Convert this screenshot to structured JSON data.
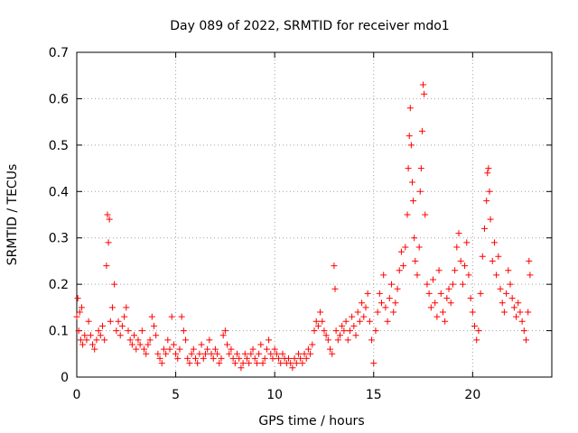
{
  "chart_data": {
    "type": "scatter",
    "title": "Day 089 of 2022, SRMTID for receiver mdo1",
    "xlabel": "GPS time / hours",
    "ylabel": "SRMTID / TECUs",
    "xlim": [
      0,
      24
    ],
    "ylim": [
      0,
      0.7
    ],
    "xticks": [
      "0",
      "5",
      "10",
      "15",
      "20"
    ],
    "yticks": [
      "0",
      "0.1",
      "0.2",
      "0.3",
      "0.4",
      "0.5",
      "0.6",
      "0.7"
    ],
    "grid": true,
    "marker": "+",
    "color": "#ff0000",
    "series": [
      {
        "name": "SRMTID",
        "points": [
          [
            0.0,
            0.13
          ],
          [
            0.05,
            0.17
          ],
          [
            0.1,
            0.1
          ],
          [
            0.15,
            0.14
          ],
          [
            0.2,
            0.08
          ],
          [
            0.25,
            0.15
          ],
          [
            0.3,
            0.07
          ],
          [
            0.4,
            0.09
          ],
          [
            0.5,
            0.08
          ],
          [
            0.6,
            0.12
          ],
          [
            0.7,
            0.09
          ],
          [
            0.8,
            0.07
          ],
          [
            0.9,
            0.06
          ],
          [
            1.0,
            0.08
          ],
          [
            1.1,
            0.1
          ],
          [
            1.2,
            0.09
          ],
          [
            1.3,
            0.11
          ],
          [
            1.4,
            0.08
          ],
          [
            1.5,
            0.24
          ],
          [
            1.55,
            0.35
          ],
          [
            1.6,
            0.29
          ],
          [
            1.65,
            0.34
          ],
          [
            1.7,
            0.12
          ],
          [
            1.8,
            0.15
          ],
          [
            1.9,
            0.2
          ],
          [
            2.0,
            0.1
          ],
          [
            2.1,
            0.12
          ],
          [
            2.2,
            0.09
          ],
          [
            2.3,
            0.11
          ],
          [
            2.4,
            0.13
          ],
          [
            2.5,
            0.15
          ],
          [
            2.6,
            0.1
          ],
          [
            2.7,
            0.08
          ],
          [
            2.8,
            0.07
          ],
          [
            2.9,
            0.09
          ],
          [
            3.0,
            0.06
          ],
          [
            3.1,
            0.08
          ],
          [
            3.2,
            0.07
          ],
          [
            3.3,
            0.1
          ],
          [
            3.4,
            0.06
          ],
          [
            3.5,
            0.05
          ],
          [
            3.6,
            0.07
          ],
          [
            3.7,
            0.08
          ],
          [
            3.8,
            0.13
          ],
          [
            3.9,
            0.11
          ],
          [
            4.0,
            0.09
          ],
          [
            4.1,
            0.05
          ],
          [
            4.2,
            0.04
          ],
          [
            4.3,
            0.03
          ],
          [
            4.4,
            0.06
          ],
          [
            4.5,
            0.05
          ],
          [
            4.6,
            0.08
          ],
          [
            4.7,
            0.06
          ],
          [
            4.8,
            0.13
          ],
          [
            4.9,
            0.07
          ],
          [
            5.0,
            0.05
          ],
          [
            5.1,
            0.04
          ],
          [
            5.2,
            0.06
          ],
          [
            5.3,
            0.13
          ],
          [
            5.4,
            0.1
          ],
          [
            5.5,
            0.08
          ],
          [
            5.6,
            0.04
          ],
          [
            5.7,
            0.03
          ],
          [
            5.8,
            0.05
          ],
          [
            5.9,
            0.06
          ],
          [
            6.0,
            0.04
          ],
          [
            6.1,
            0.03
          ],
          [
            6.2,
            0.05
          ],
          [
            6.3,
            0.07
          ],
          [
            6.4,
            0.04
          ],
          [
            6.5,
            0.05
          ],
          [
            6.6,
            0.06
          ],
          [
            6.7,
            0.08
          ],
          [
            6.8,
            0.05
          ],
          [
            6.9,
            0.04
          ],
          [
            7.0,
            0.06
          ],
          [
            7.1,
            0.05
          ],
          [
            7.2,
            0.03
          ],
          [
            7.3,
            0.04
          ],
          [
            7.4,
            0.09
          ],
          [
            7.5,
            0.1
          ],
          [
            7.6,
            0.07
          ],
          [
            7.7,
            0.05
          ],
          [
            7.8,
            0.06
          ],
          [
            7.9,
            0.04
          ],
          [
            8.0,
            0.03
          ],
          [
            8.1,
            0.05
          ],
          [
            8.2,
            0.04
          ],
          [
            8.3,
            0.02
          ],
          [
            8.4,
            0.03
          ],
          [
            8.5,
            0.05
          ],
          [
            8.6,
            0.04
          ],
          [
            8.7,
            0.03
          ],
          [
            8.8,
            0.05
          ],
          [
            8.9,
            0.06
          ],
          [
            9.0,
            0.04
          ],
          [
            9.1,
            0.03
          ],
          [
            9.2,
            0.05
          ],
          [
            9.3,
            0.07
          ],
          [
            9.4,
            0.03
          ],
          [
            9.5,
            0.04
          ],
          [
            9.6,
            0.06
          ],
          [
            9.7,
            0.08
          ],
          [
            9.8,
            0.05
          ],
          [
            9.9,
            0.04
          ],
          [
            10.0,
            0.06
          ],
          [
            10.1,
            0.05
          ],
          [
            10.2,
            0.04
          ],
          [
            10.3,
            0.03
          ],
          [
            10.4,
            0.05
          ],
          [
            10.5,
            0.04
          ],
          [
            10.6,
            0.03
          ],
          [
            10.7,
            0.04
          ],
          [
            10.8,
            0.03
          ],
          [
            10.9,
            0.02
          ],
          [
            11.0,
            0.04
          ],
          [
            11.1,
            0.03
          ],
          [
            11.2,
            0.05
          ],
          [
            11.3,
            0.04
          ],
          [
            11.4,
            0.03
          ],
          [
            11.5,
            0.05
          ],
          [
            11.6,
            0.04
          ],
          [
            11.7,
            0.06
          ],
          [
            11.8,
            0.05
          ],
          [
            11.9,
            0.07
          ],
          [
            12.0,
            0.1
          ],
          [
            12.1,
            0.12
          ],
          [
            12.2,
            0.11
          ],
          [
            12.3,
            0.14
          ],
          [
            12.4,
            0.12
          ],
          [
            12.5,
            0.1
          ],
          [
            12.6,
            0.09
          ],
          [
            12.7,
            0.08
          ],
          [
            12.8,
            0.06
          ],
          [
            12.9,
            0.05
          ],
          [
            13.0,
            0.24
          ],
          [
            13.05,
            0.19
          ],
          [
            13.1,
            0.1
          ],
          [
            13.2,
            0.08
          ],
          [
            13.3,
            0.09
          ],
          [
            13.4,
            0.11
          ],
          [
            13.5,
            0.1
          ],
          [
            13.6,
            0.12
          ],
          [
            13.7,
            0.08
          ],
          [
            13.8,
            0.1
          ],
          [
            13.9,
            0.13
          ],
          [
            14.0,
            0.11
          ],
          [
            14.1,
            0.09
          ],
          [
            14.2,
            0.14
          ],
          [
            14.3,
            0.12
          ],
          [
            14.4,
            0.16
          ],
          [
            14.5,
            0.13
          ],
          [
            14.6,
            0.15
          ],
          [
            14.7,
            0.18
          ],
          [
            14.8,
            0.12
          ],
          [
            14.9,
            0.08
          ],
          [
            15.0,
            0.03
          ],
          [
            15.1,
            0.1
          ],
          [
            15.2,
            0.14
          ],
          [
            15.3,
            0.18
          ],
          [
            15.4,
            0.16
          ],
          [
            15.5,
            0.22
          ],
          [
            15.6,
            0.15
          ],
          [
            15.7,
            0.12
          ],
          [
            15.8,
            0.17
          ],
          [
            15.9,
            0.2
          ],
          [
            16.0,
            0.14
          ],
          [
            16.1,
            0.16
          ],
          [
            16.2,
            0.19
          ],
          [
            16.3,
            0.23
          ],
          [
            16.4,
            0.27
          ],
          [
            16.5,
            0.24
          ],
          [
            16.6,
            0.28
          ],
          [
            16.7,
            0.35
          ],
          [
            16.75,
            0.45
          ],
          [
            16.8,
            0.52
          ],
          [
            16.85,
            0.58
          ],
          [
            16.9,
            0.5
          ],
          [
            16.95,
            0.42
          ],
          [
            17.0,
            0.38
          ],
          [
            17.05,
            0.3
          ],
          [
            17.1,
            0.25
          ],
          [
            17.2,
            0.22
          ],
          [
            17.3,
            0.28
          ],
          [
            17.35,
            0.4
          ],
          [
            17.4,
            0.45
          ],
          [
            17.45,
            0.53
          ],
          [
            17.5,
            0.63
          ],
          [
            17.55,
            0.61
          ],
          [
            17.6,
            0.35
          ],
          [
            17.7,
            0.2
          ],
          [
            17.8,
            0.18
          ],
          [
            17.9,
            0.15
          ],
          [
            18.0,
            0.21
          ],
          [
            18.1,
            0.16
          ],
          [
            18.2,
            0.13
          ],
          [
            18.3,
            0.23
          ],
          [
            18.4,
            0.18
          ],
          [
            18.5,
            0.14
          ],
          [
            18.6,
            0.12
          ],
          [
            18.7,
            0.17
          ],
          [
            18.8,
            0.19
          ],
          [
            18.9,
            0.16
          ],
          [
            19.0,
            0.2
          ],
          [
            19.1,
            0.23
          ],
          [
            19.2,
            0.28
          ],
          [
            19.3,
            0.31
          ],
          [
            19.4,
            0.25
          ],
          [
            19.5,
            0.2
          ],
          [
            19.6,
            0.24
          ],
          [
            19.7,
            0.29
          ],
          [
            19.8,
            0.22
          ],
          [
            19.9,
            0.17
          ],
          [
            20.0,
            0.14
          ],
          [
            20.1,
            0.11
          ],
          [
            20.2,
            0.08
          ],
          [
            20.3,
            0.1
          ],
          [
            20.4,
            0.18
          ],
          [
            20.5,
            0.26
          ],
          [
            20.6,
            0.32
          ],
          [
            20.7,
            0.38
          ],
          [
            20.75,
            0.44
          ],
          [
            20.8,
            0.45
          ],
          [
            20.85,
            0.4
          ],
          [
            20.9,
            0.34
          ],
          [
            21.0,
            0.25
          ],
          [
            21.1,
            0.29
          ],
          [
            21.2,
            0.22
          ],
          [
            21.3,
            0.26
          ],
          [
            21.4,
            0.19
          ],
          [
            21.5,
            0.16
          ],
          [
            21.6,
            0.14
          ],
          [
            21.7,
            0.18
          ],
          [
            21.8,
            0.23
          ],
          [
            21.9,
            0.2
          ],
          [
            22.0,
            0.17
          ],
          [
            22.1,
            0.15
          ],
          [
            22.2,
            0.13
          ],
          [
            22.3,
            0.16
          ],
          [
            22.4,
            0.14
          ],
          [
            22.5,
            0.12
          ],
          [
            22.6,
            0.1
          ],
          [
            22.7,
            0.08
          ],
          [
            22.8,
            0.14
          ],
          [
            22.85,
            0.25
          ],
          [
            22.9,
            0.22
          ]
        ]
      }
    ]
  }
}
